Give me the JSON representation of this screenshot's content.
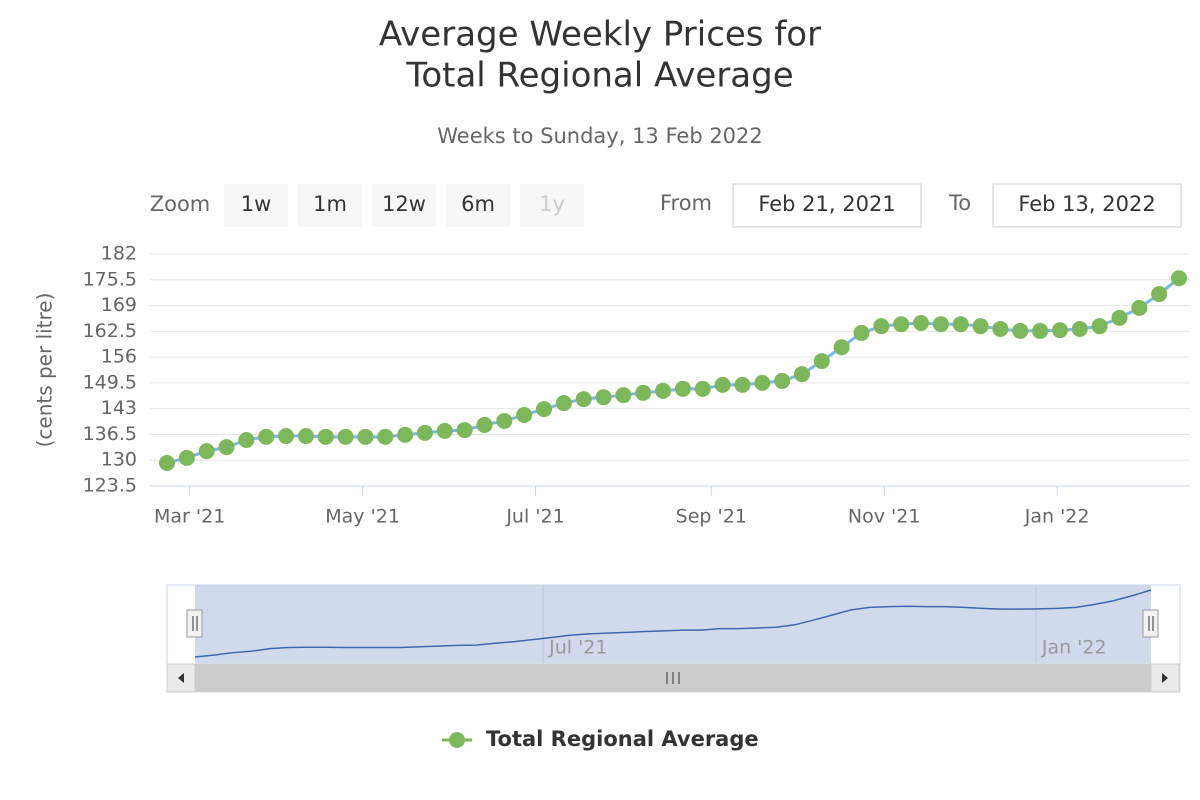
{
  "chart_data": {
    "type": "line",
    "title": [
      "Average Weekly Prices for",
      "Total Regional Average"
    ],
    "subtitle": "Weeks to Sunday, 13 Feb 2022",
    "y_label": "(cents per litre)",
    "x": [
      "2021-02-21",
      "2021-02-28",
      "2021-03-07",
      "2021-03-14",
      "2021-03-21",
      "2021-03-28",
      "2021-04-04",
      "2021-04-11",
      "2021-04-18",
      "2021-04-25",
      "2021-05-02",
      "2021-05-09",
      "2021-05-16",
      "2021-05-23",
      "2021-05-30",
      "2021-06-06",
      "2021-06-13",
      "2021-06-20",
      "2021-06-27",
      "2021-07-04",
      "2021-07-11",
      "2021-07-18",
      "2021-07-25",
      "2021-08-01",
      "2021-08-08",
      "2021-08-15",
      "2021-08-22",
      "2021-08-29",
      "2021-09-05",
      "2021-09-12",
      "2021-09-19",
      "2021-09-26",
      "2021-10-03",
      "2021-10-10",
      "2021-10-17",
      "2021-10-24",
      "2021-10-31",
      "2021-11-07",
      "2021-11-14",
      "2021-11-21",
      "2021-11-28",
      "2021-12-05",
      "2021-12-12",
      "2021-12-19",
      "2021-12-26",
      "2022-01-02",
      "2022-01-09",
      "2022-01-16",
      "2022-01-23",
      "2022-01-30",
      "2022-02-06",
      "2022-02-13"
    ],
    "series": [
      {
        "name": "Total Regional Average",
        "color": "#7cb5ec",
        "marker_color": "#7cb85a",
        "values": [
          129.3,
          130.6,
          132.3,
          133.3,
          135.1,
          135.9,
          136.1,
          136.1,
          135.9,
          135.9,
          135.9,
          135.9,
          136.4,
          136.9,
          137.4,
          137.6,
          138.9,
          139.9,
          141.4,
          142.9,
          144.4,
          145.4,
          145.9,
          146.4,
          147.0,
          147.5,
          148.0,
          148.0,
          149.0,
          149.0,
          149.5,
          150.0,
          151.7,
          155.0,
          158.5,
          162.1,
          163.8,
          164.3,
          164.6,
          164.3,
          164.3,
          163.8,
          163.1,
          162.6,
          162.6,
          162.8,
          163.1,
          163.8,
          165.9,
          168.4,
          171.9,
          175.9
        ]
      }
    ],
    "xlim": [
      "2021-02-21",
      "2022-02-13"
    ],
    "xticks": [
      {
        "value": "2021-03-01",
        "label": "Mar '21"
      },
      {
        "value": "2021-05-01",
        "label": "May '21"
      },
      {
        "value": "2021-07-01",
        "label": "Jul '21"
      },
      {
        "value": "2021-09-01",
        "label": "Sep '21"
      },
      {
        "value": "2021-11-01",
        "label": "Nov '21"
      },
      {
        "value": "2022-01-01",
        "label": "Jan '22"
      }
    ],
    "ylim": [
      123.5,
      182
    ],
    "yticks": [
      123.5,
      130,
      136.5,
      143,
      149.5,
      156,
      162.5,
      169,
      175.5,
      182
    ],
    "grid": true,
    "legend": "bottom",
    "navigator": {
      "line_color": "#3d67b0",
      "mask_color": "#ccd6eb",
      "xticks": [
        {
          "value": "2021-07-01",
          "label": "Jul '21"
        },
        {
          "value": "2022-01-01",
          "label": "Jan '22"
        }
      ]
    }
  },
  "range_selector": {
    "zoom_label": "Zoom",
    "buttons": [
      "1w",
      "1m",
      "12w",
      "6m",
      "1y"
    ],
    "disabled": [
      4
    ],
    "from_label": "From",
    "from": "Feb 21, 2021",
    "to_label": "To",
    "to": "Feb 13, 2022"
  }
}
